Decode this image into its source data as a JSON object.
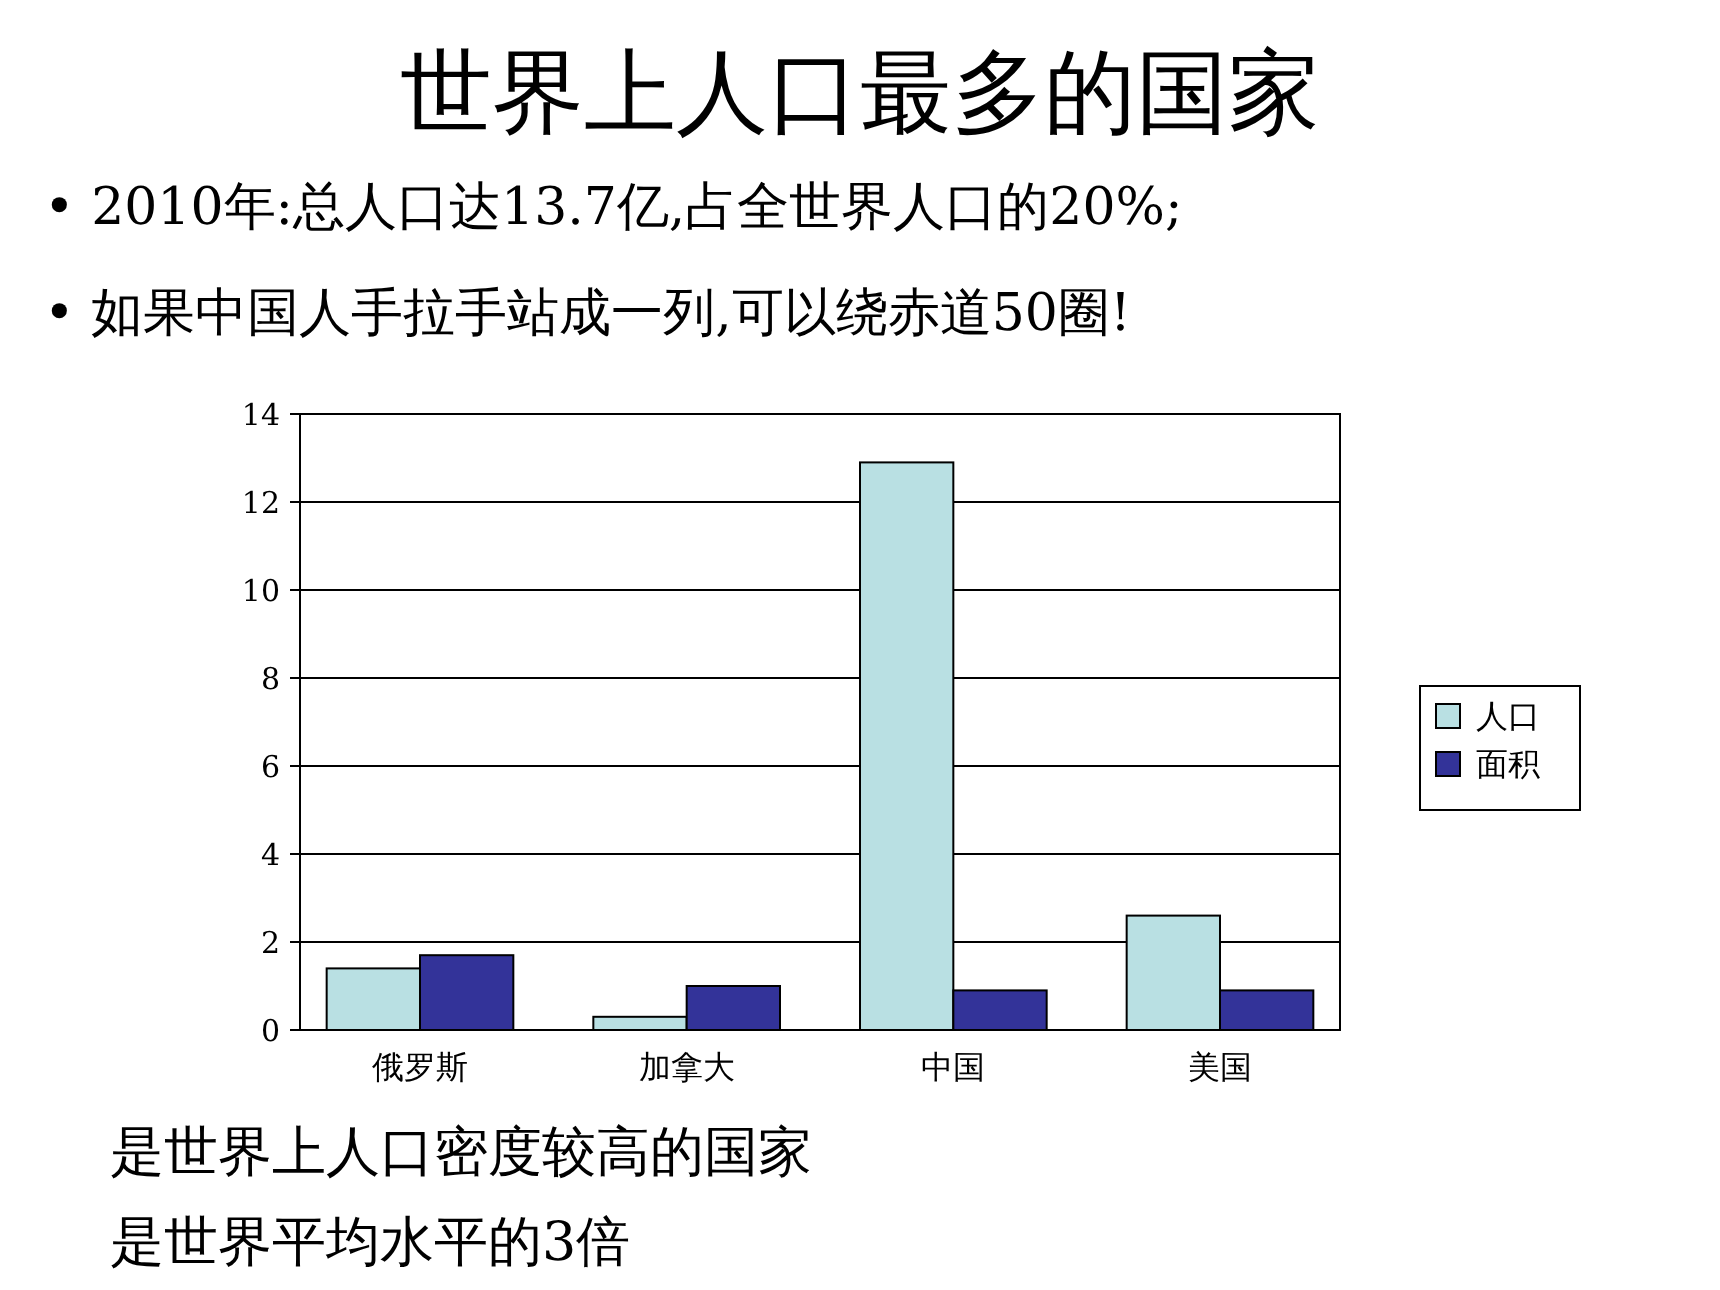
{
  "chart_data": {
    "type": "bar",
    "title": "世界上人口最多的国家",
    "annotations": [
      "• 2010年:总人口达13.7亿,占全世界人口的20%;",
      "• 如果中国人手拉手站成一列,可以绕赤道50圈!",
      "是世界上人口密度较高的国家",
      "是世界平均水平的3倍"
    ],
    "categories": [
      "俄罗斯",
      "加拿大",
      "中国",
      "美国"
    ],
    "series": [
      {
        "name": "人口",
        "color": "#b9e0e3",
        "values": [
          1.4,
          0.3,
          12.9,
          2.6
        ]
      },
      {
        "name": "面积",
        "color": "#333399",
        "values": [
          1.7,
          1.0,
          0.9,
          0.9
        ]
      }
    ],
    "ylim": [
      0,
      14
    ],
    "yticks": [
      0,
      2,
      4,
      6,
      8,
      10,
      12,
      14
    ],
    "grid": "y",
    "legend": "right"
  }
}
